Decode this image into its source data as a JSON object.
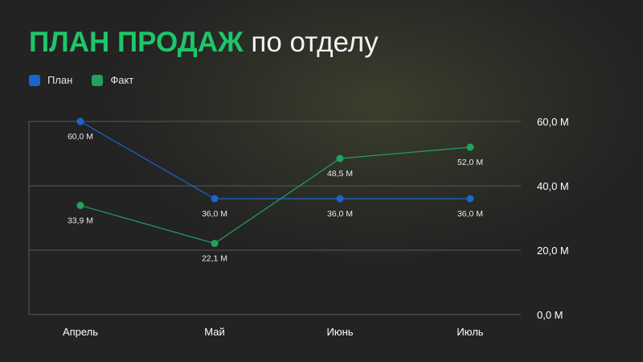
{
  "title": {
    "accent": "ПЛАН ПРОДАЖ",
    "rest": "по отделу"
  },
  "colors": {
    "plan": "#1a66cf",
    "fact": "#1fa35f",
    "accent": "#1fc56a",
    "grid": "#5a5a55",
    "text": "#ffffff"
  },
  "chart_data": {
    "type": "line",
    "categories": [
      "Апрель",
      "Май",
      "Июнь",
      "Июль"
    ],
    "series": [
      {
        "name": "План",
        "values": [
          60.0,
          36.0,
          36.0,
          36.0
        ],
        "labels": [
          "60,0 M",
          "36,0 M",
          "36,0 M",
          "36,0 M"
        ],
        "color": "#1a66cf"
      },
      {
        "name": "Факт",
        "values": [
          33.9,
          22.1,
          48.5,
          52.0
        ],
        "labels": [
          "33,9 M",
          "22,1 M",
          "48,5 M",
          "52,0 M"
        ],
        "color": "#1fa35f"
      }
    ],
    "yticks": [
      0,
      20,
      40,
      60
    ],
    "ytick_labels": [
      "0,0 M",
      "20,0 M",
      "40,0 M",
      "60,0 M"
    ],
    "ylim": [
      0,
      60
    ],
    "y_axis_position": "right",
    "legend_position": "top-left",
    "grid": true
  }
}
